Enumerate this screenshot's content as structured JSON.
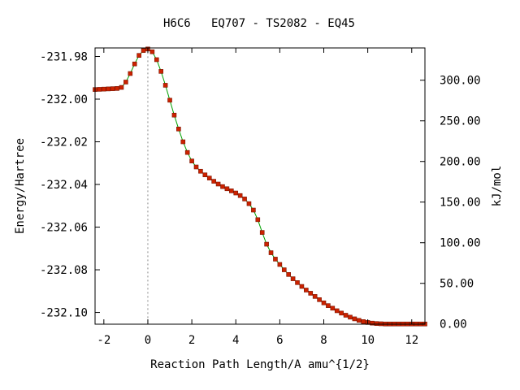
{
  "chart_data": {
    "type": "scatter",
    "title": "H6C6   EQ707 - TS2082 - EQ45",
    "xlabel": "Reaction Path Length/A amu^{1/2}",
    "ylabel": "Energy/Hartree",
    "y2label": "kJ/mol",
    "xlim": [
      -2.4,
      12.6
    ],
    "ylim": [
      -232.1055,
      -231.976
    ],
    "xticks": [
      -2,
      0,
      2,
      4,
      6,
      8,
      10,
      12
    ],
    "yticks": [
      -231.98,
      -232.0,
      -232.02,
      -232.04,
      -232.06,
      -232.08,
      -232.1
    ],
    "ytick_labels": [
      "-231.98",
      "-232.00",
      "-232.02",
      "-232.04",
      "-232.06",
      "-232.08",
      "-232.10"
    ],
    "y2ticks": [
      0,
      50,
      100,
      150,
      200,
      250,
      300
    ],
    "y2tick_labels": [
      "0.00",
      "50.00",
      "100.00",
      "150.00",
      "200.00",
      "250.00",
      "300.00"
    ],
    "y2_reference_energy": -232.1054,
    "hartree_to_kjmol": 2625.5,
    "ts_marker_x": 0,
    "grid": false,
    "colors": {
      "points": "#cc2200",
      "line": "#00a000",
      "ts_line": "#888888",
      "axes": "#000000"
    },
    "series": [
      {
        "x": [
          -2.4,
          -2.2,
          -2.0,
          -1.8,
          -1.6,
          -1.4,
          -1.2,
          -1.0,
          -0.8,
          -0.6,
          -0.4,
          -0.2,
          0.0,
          0.2,
          0.4,
          0.6,
          0.8,
          1.0,
          1.2,
          1.4,
          1.6,
          1.8,
          2.0,
          2.2,
          2.4,
          2.6,
          2.8,
          3.0,
          3.2,
          3.4,
          3.6,
          3.8,
          4.0,
          4.2,
          4.4,
          4.6,
          4.8,
          5.0,
          5.2,
          5.4,
          5.6,
          5.8,
          6.0,
          6.2,
          6.4,
          6.6,
          6.8,
          7.0,
          7.2,
          7.4,
          7.6,
          7.8,
          8.0,
          8.2,
          8.4,
          8.6,
          8.8,
          9.0,
          9.2,
          9.4,
          9.6,
          9.8,
          10.0,
          10.2,
          10.4,
          10.6,
          10.8,
          11.0,
          11.2,
          11.4,
          11.6,
          11.8,
          12.0,
          12.2,
          12.4,
          12.6
        ],
        "y": [
          -231.9955,
          -231.9954,
          -231.9953,
          -231.9952,
          -231.9951,
          -231.995,
          -231.9945,
          -231.992,
          -231.988,
          -231.9835,
          -231.9795,
          -231.9772,
          -231.9765,
          -231.9778,
          -231.9815,
          -231.987,
          -231.9935,
          -232.0005,
          -232.0075,
          -232.014,
          -232.02,
          -232.025,
          -232.029,
          -232.0318,
          -232.0338,
          -232.0355,
          -232.037,
          -232.0385,
          -232.0398,
          -232.041,
          -232.042,
          -232.043,
          -232.044,
          -232.0452,
          -232.0468,
          -232.049,
          -232.052,
          -232.0565,
          -232.0625,
          -232.068,
          -232.072,
          -232.075,
          -232.0775,
          -232.08,
          -232.0822,
          -232.0842,
          -232.086,
          -232.0878,
          -232.0895,
          -232.091,
          -232.0925,
          -232.094,
          -232.0955,
          -232.0968,
          -232.098,
          -232.0992,
          -232.1003,
          -232.1013,
          -232.1022,
          -232.103,
          -232.1037,
          -232.1043,
          -232.1047,
          -232.105,
          -232.1052,
          -232.1053,
          -232.1054,
          -232.1054,
          -232.1054,
          -232.1054,
          -232.1054,
          -232.1054,
          -232.1054,
          -232.1054,
          -232.1054,
          -232.1054
        ]
      }
    ]
  }
}
